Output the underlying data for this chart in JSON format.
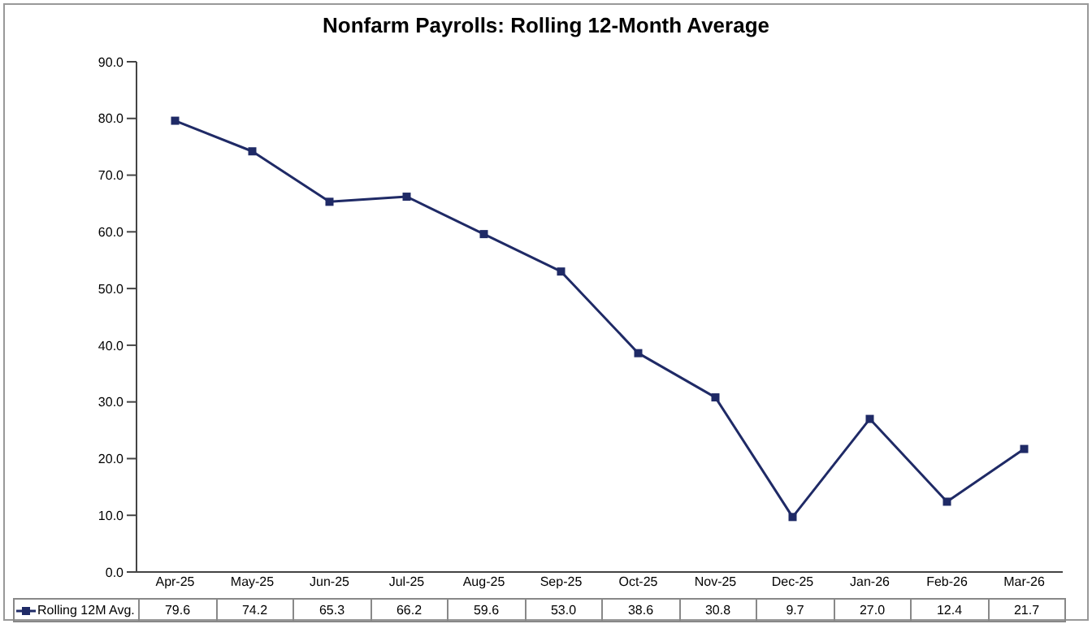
{
  "chart_data": {
    "type": "line",
    "title": "Nonfarm Payrolls: Rolling 12-Month Average",
    "categories": [
      "Apr-25",
      "May-25",
      "Jun-25",
      "Jul-25",
      "Aug-25",
      "Sep-25",
      "Oct-25",
      "Nov-25",
      "Dec-25",
      "Jan-26",
      "Feb-26",
      "Mar-26"
    ],
    "series": [
      {
        "name": "Rolling 12M Avg.",
        "color": "#1f2a66",
        "values": [
          79.6,
          74.2,
          65.3,
          66.2,
          59.6,
          53.0,
          38.6,
          30.8,
          9.7,
          27.0,
          12.4,
          21.7
        ],
        "value_labels": [
          "79.6",
          "74.2",
          "65.3",
          "66.2",
          "59.6",
          "53.0",
          "38.6",
          "30.8",
          "9.7",
          "27.0",
          "12.4",
          "21.7"
        ]
      }
    ],
    "ylim": [
      0,
      90
    ],
    "yticks": [
      {
        "value": 0,
        "label": "0.0"
      },
      {
        "value": 10,
        "label": "10.0"
      },
      {
        "value": 20,
        "label": "20.0"
      },
      {
        "value": 30,
        "label": "30.0"
      },
      {
        "value": 40,
        "label": "40.0"
      },
      {
        "value": 50,
        "label": "50.0"
      },
      {
        "value": 60,
        "label": "60.0"
      },
      {
        "value": 70,
        "label": "70.0"
      },
      {
        "value": 80,
        "label": "80.0"
      },
      {
        "value": 90,
        "label": "90.0"
      }
    ],
    "marker": "square",
    "line_style": "solid",
    "legend": "bottom",
    "grid": false
  }
}
